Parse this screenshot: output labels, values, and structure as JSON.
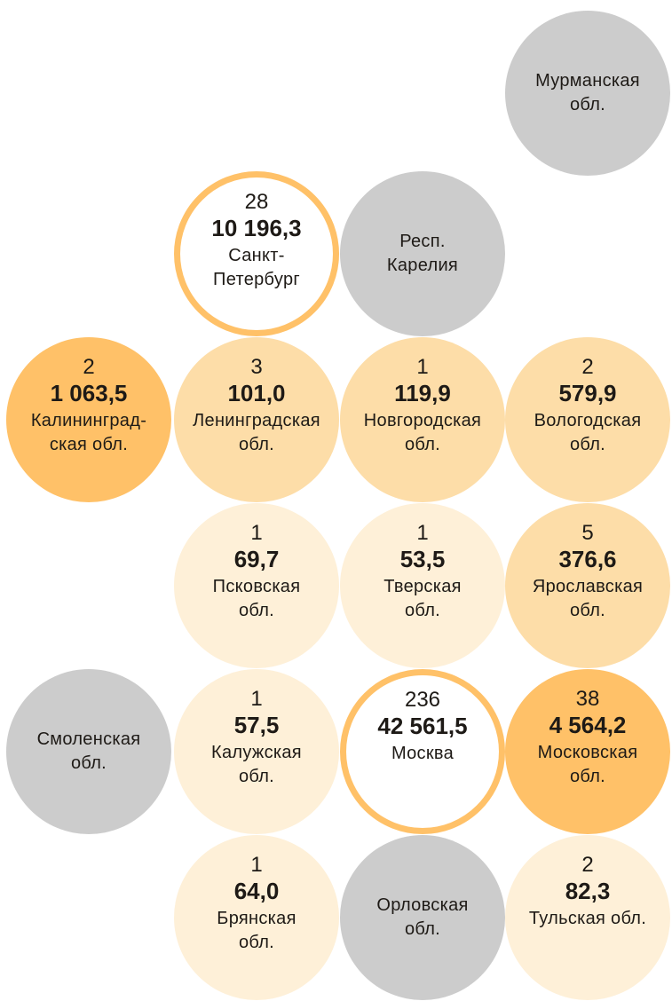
{
  "colors": {
    "none": "#CCCCCC",
    "low": "#FEF0D8",
    "mid": "#FDDDA8",
    "high": "#FFC168",
    "ring": "#FFC168"
  },
  "regions": [
    {
      "name": "Мурманская\nобл.",
      "count": null,
      "value": null,
      "fill": "#CCCCCC"
    },
    {
      "name": "Санкт-\nПетербург",
      "count": "28",
      "value": "10 196,3",
      "fill": "#FFFFFF"
    },
    {
      "name": "Респ.\nКарелия",
      "count": null,
      "value": null,
      "fill": "#CCCCCC"
    },
    {
      "name": "Калининград-\nская обл.",
      "count": "2",
      "value": "1 063,5",
      "fill": "#FFC168"
    },
    {
      "name": "Ленинградская\nобл.",
      "count": "3",
      "value": "101,0",
      "fill": "#FDDDA8"
    },
    {
      "name": "Новгородская\nобл.",
      "count": "1",
      "value": "119,9",
      "fill": "#FDDDA8"
    },
    {
      "name": "Вологодская\nобл.",
      "count": "2",
      "value": "579,9",
      "fill": "#FDDDA8"
    },
    {
      "name": "Псковская\nобл.",
      "count": "1",
      "value": "69,7",
      "fill": "#FEF0D8"
    },
    {
      "name": "Тверская\nобл.",
      "count": "1",
      "value": "53,5",
      "fill": "#FEF0D8"
    },
    {
      "name": "Ярославская\nобл.",
      "count": "5",
      "value": "376,6",
      "fill": "#FDDDA8"
    },
    {
      "name": "Смоленская\nобл.",
      "count": null,
      "value": null,
      "fill": "#CCCCCC"
    },
    {
      "name": "Калужская\nобл.",
      "count": "1",
      "value": "57,5",
      "fill": "#FEF0D8"
    },
    {
      "name": "Москва",
      "count": "236",
      "value": "42 561,5",
      "fill": "#FFFFFF"
    },
    {
      "name": "Московская\nобл.",
      "count": "38",
      "value": "4 564,2",
      "fill": "#FFC168"
    },
    {
      "name": "Брянская\nобл.",
      "count": "1",
      "value": "64,0",
      "fill": "#FEF0D8"
    },
    {
      "name": "Орловская\nобл.",
      "count": null,
      "value": null,
      "fill": "#CCCCCC"
    },
    {
      "name": "Тульская обл.",
      "count": "2",
      "value": "82,3",
      "fill": "#FEF0D8"
    }
  ]
}
